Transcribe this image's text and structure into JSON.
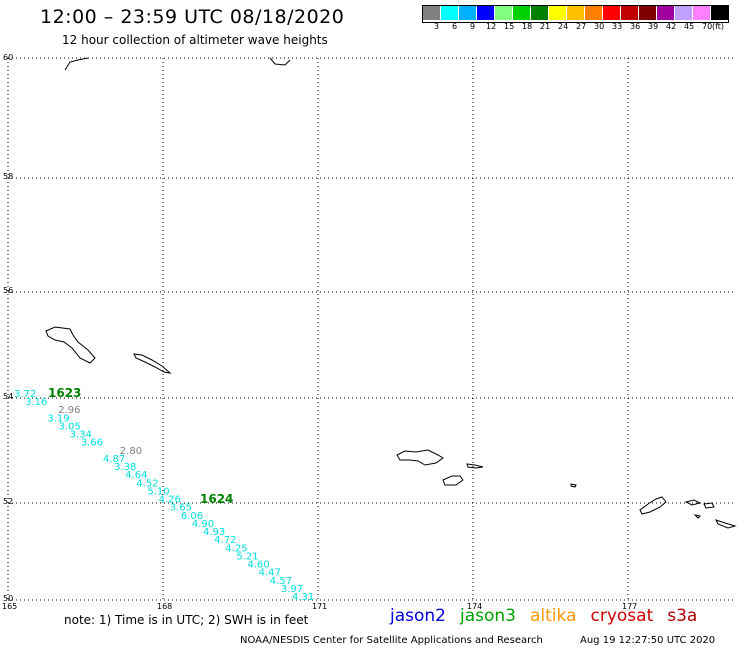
{
  "title": "12:00 – 23:59 UTC 08/18/2020",
  "subtitle": "12 hour collection of altimeter wave heights",
  "legend": {
    "colors": [
      "#808080",
      "#00ffff",
      "#00b0ff",
      "#0000ff",
      "#80ff80",
      "#00d000",
      "#008000",
      "#ffff00",
      "#ffc000",
      "#ff8000",
      "#ff0000",
      "#c00000",
      "#800000",
      "#a000a0",
      "#c0a0ff",
      "#ff80ff",
      "#000000"
    ],
    "labels": [
      "3",
      "6",
      "9",
      "12",
      "15",
      "18",
      "21",
      "24",
      "27",
      "30",
      "33",
      "36",
      "39",
      "42",
      "45",
      "70"
    ],
    "unit": "(ft)"
  },
  "map": {
    "lat_labels": [
      "60",
      "58",
      "56",
      "54",
      "52",
      "50"
    ],
    "lon_labels": [
      "165",
      "168",
      "171",
      "174",
      "177"
    ],
    "gridlines": true
  },
  "track": {
    "pass_labels": [
      "1623",
      "1624"
    ],
    "pass_color": "#008000",
    "points": [
      {
        "value": "3.72",
        "color": "#00e0e0"
      },
      {
        "value": "3.16",
        "color": "#00e0e0"
      },
      {
        "value": "2.96",
        "color": "#808080"
      },
      {
        "value": "3.19",
        "color": "#00e0e0"
      },
      {
        "value": "3.05",
        "color": "#00e0e0"
      },
      {
        "value": "3.34",
        "color": "#00e0e0"
      },
      {
        "value": "3.66",
        "color": "#00e0e0"
      },
      {
        "value": "2.80",
        "color": "#808080"
      },
      {
        "value": "4.87",
        "color": "#00e0e0"
      },
      {
        "value": "3.38",
        "color": "#00e0e0"
      },
      {
        "value": "4.64",
        "color": "#00e0e0"
      },
      {
        "value": "4.52",
        "color": "#00e0e0"
      },
      {
        "value": "5.10",
        "color": "#00e0e0"
      },
      {
        "value": "4.26",
        "color": "#00e0e0"
      },
      {
        "value": "3.65",
        "color": "#00e0e0"
      },
      {
        "value": "6.06",
        "color": "#00e0e0"
      },
      {
        "value": "4.90",
        "color": "#00e0e0"
      },
      {
        "value": "4.93",
        "color": "#00e0e0"
      },
      {
        "value": "4.72",
        "color": "#00e0e0"
      },
      {
        "value": "4.25",
        "color": "#00e0e0"
      },
      {
        "value": "5.21",
        "color": "#00e0e0"
      },
      {
        "value": "4.60",
        "color": "#00e0e0"
      },
      {
        "value": "4.47",
        "color": "#00e0e0"
      },
      {
        "value": "4.57",
        "color": "#00e0e0"
      },
      {
        "value": "3.97",
        "color": "#00e0e0"
      },
      {
        "value": "4.31",
        "color": "#00e0e0"
      }
    ]
  },
  "footer": {
    "note": "note: 1) Time is in UTC; 2) SWH is in feet",
    "satellites": [
      {
        "name": "jason2",
        "color": "#0000dd"
      },
      {
        "name": "jason3",
        "color": "#00a000"
      },
      {
        "name": "altika",
        "color": "#ff9900"
      },
      {
        "name": "cryosat",
        "color": "#cc0000"
      },
      {
        "name": "s3a",
        "color": "#aa0000"
      }
    ],
    "credit": "NOAA/NESDIS Center for Satellite Applications and Research",
    "generated": "Aug 19 12:27:50 UTC 2020"
  }
}
